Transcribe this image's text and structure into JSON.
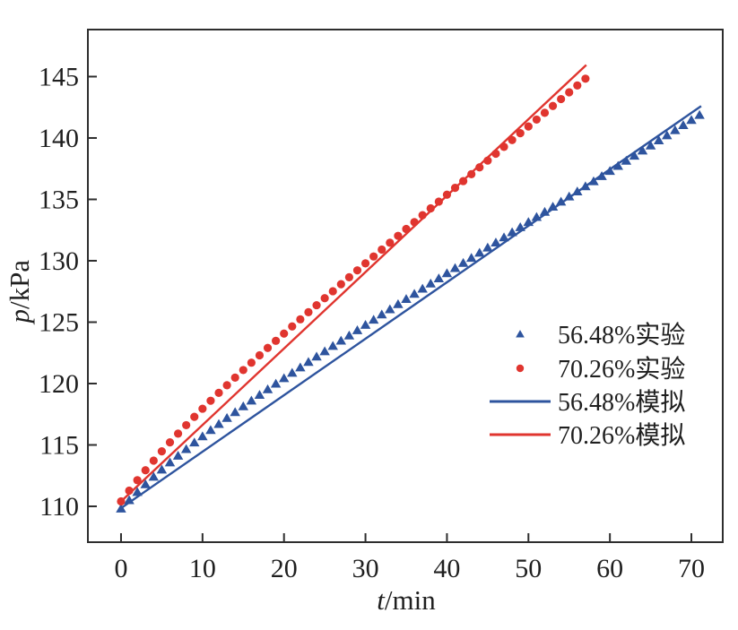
{
  "figure": {
    "background": "#ffffff",
    "frame_color": "#2e2e2e",
    "text_color": "#1f1f1f"
  },
  "chart_data": {
    "type": "scatter",
    "title": "",
    "xlabel": "t/min",
    "xlabel_italic": "t",
    "xlabel_rest": "/min",
    "ylabel": "p/kPa",
    "ylabel_italic": "p",
    "ylabel_rest": "/kPa",
    "xlim": [
      -4.07,
      73.85
    ],
    "ylim": [
      107.08,
      148.83
    ],
    "xticks": [
      0,
      10,
      20,
      30,
      40,
      50,
      60,
      70
    ],
    "yticks": [
      110,
      115,
      120,
      125,
      130,
      135,
      140,
      145
    ],
    "grid": false,
    "legend_position": "right-center",
    "series": [
      {
        "name": "56.48%实验",
        "kind": "scatter",
        "marker": "triangle",
        "color": "#2e549e",
        "x": [
          0,
          1,
          2,
          3,
          4,
          5,
          6,
          7,
          8,
          9,
          10,
          11,
          12,
          13,
          14,
          15,
          16,
          17,
          18,
          19,
          20,
          21,
          22,
          23,
          24,
          25,
          26,
          27,
          28,
          29,
          30,
          31,
          32,
          33,
          34,
          35,
          36,
          37,
          38,
          39,
          40,
          41,
          42,
          43,
          44,
          45,
          46,
          47,
          48,
          49,
          50,
          51,
          52,
          53,
          54,
          55,
          56,
          57,
          58,
          59,
          60,
          61,
          62,
          63,
          64,
          65,
          66,
          67,
          68,
          69,
          70,
          71
        ],
        "y": [
          109.8,
          110.49,
          111.15,
          111.78,
          112.39,
          112.98,
          113.56,
          114.11,
          114.65,
          115.18,
          115.69,
          116.2,
          116.69,
          117.18,
          117.66,
          118.13,
          118.6,
          119.06,
          119.52,
          119.97,
          120.42,
          120.86,
          121.3,
          121.74,
          122.18,
          122.61,
          123.05,
          123.48,
          123.9,
          124.33,
          124.76,
          125.18,
          125.61,
          126.03,
          126.45,
          126.87,
          127.29,
          127.71,
          128.13,
          128.55,
          128.97,
          129.39,
          129.81,
          130.22,
          130.64,
          131.06,
          131.47,
          131.89,
          132.31,
          132.72,
          133.14,
          133.55,
          133.97,
          134.39,
          134.8,
          135.22,
          135.63,
          136.05,
          136.46,
          136.88,
          137.3,
          137.71,
          138.13,
          138.54,
          138.96,
          139.37,
          139.79,
          140.2,
          140.62,
          141.03,
          141.45,
          141.86
        ]
      },
      {
        "name": "70.26%实验",
        "kind": "scatter",
        "marker": "circle",
        "color": "#e0352f",
        "x": [
          0,
          1,
          2,
          3,
          4,
          5,
          6,
          7,
          8,
          9,
          10,
          11,
          12,
          13,
          14,
          15,
          16,
          17,
          18,
          19,
          20,
          21,
          22,
          23,
          24,
          25,
          26,
          27,
          28,
          29,
          30,
          31,
          32,
          33,
          34,
          35,
          36,
          37,
          38,
          39,
          40,
          41,
          42,
          43,
          44,
          45,
          46,
          47,
          48,
          49,
          50,
          51,
          52,
          53,
          54,
          55,
          56,
          57
        ],
        "y": [
          110.4,
          111.28,
          112.13,
          112.94,
          113.72,
          114.48,
          115.21,
          115.92,
          116.61,
          117.29,
          117.95,
          118.6,
          119.24,
          119.86,
          120.48,
          121.1,
          121.7,
          122.3,
          122.9,
          123.48,
          124.07,
          124.65,
          125.23,
          125.81,
          126.38,
          126.95,
          127.52,
          128.09,
          128.66,
          129.22,
          129.79,
          130.35,
          130.91,
          131.47,
          132.03,
          132.59,
          133.15,
          133.71,
          134.27,
          134.82,
          135.38,
          135.94,
          136.49,
          137.05,
          137.61,
          138.16,
          138.72,
          139.28,
          139.83,
          140.39,
          140.94,
          141.5,
          142.05,
          142.61,
          143.17,
          143.72,
          144.28,
          144.83
        ]
      },
      {
        "name": "56.48%模拟",
        "kind": "line",
        "marker": "line",
        "color": "#2e549e",
        "x": [
          0,
          71.2
        ],
        "y": [
          109.85,
          142.6
        ]
      },
      {
        "name": "70.26%模拟",
        "kind": "line",
        "marker": "line",
        "color": "#e0352f",
        "x": [
          0,
          57.1
        ],
        "y": [
          110.4,
          145.95
        ]
      }
    ]
  }
}
